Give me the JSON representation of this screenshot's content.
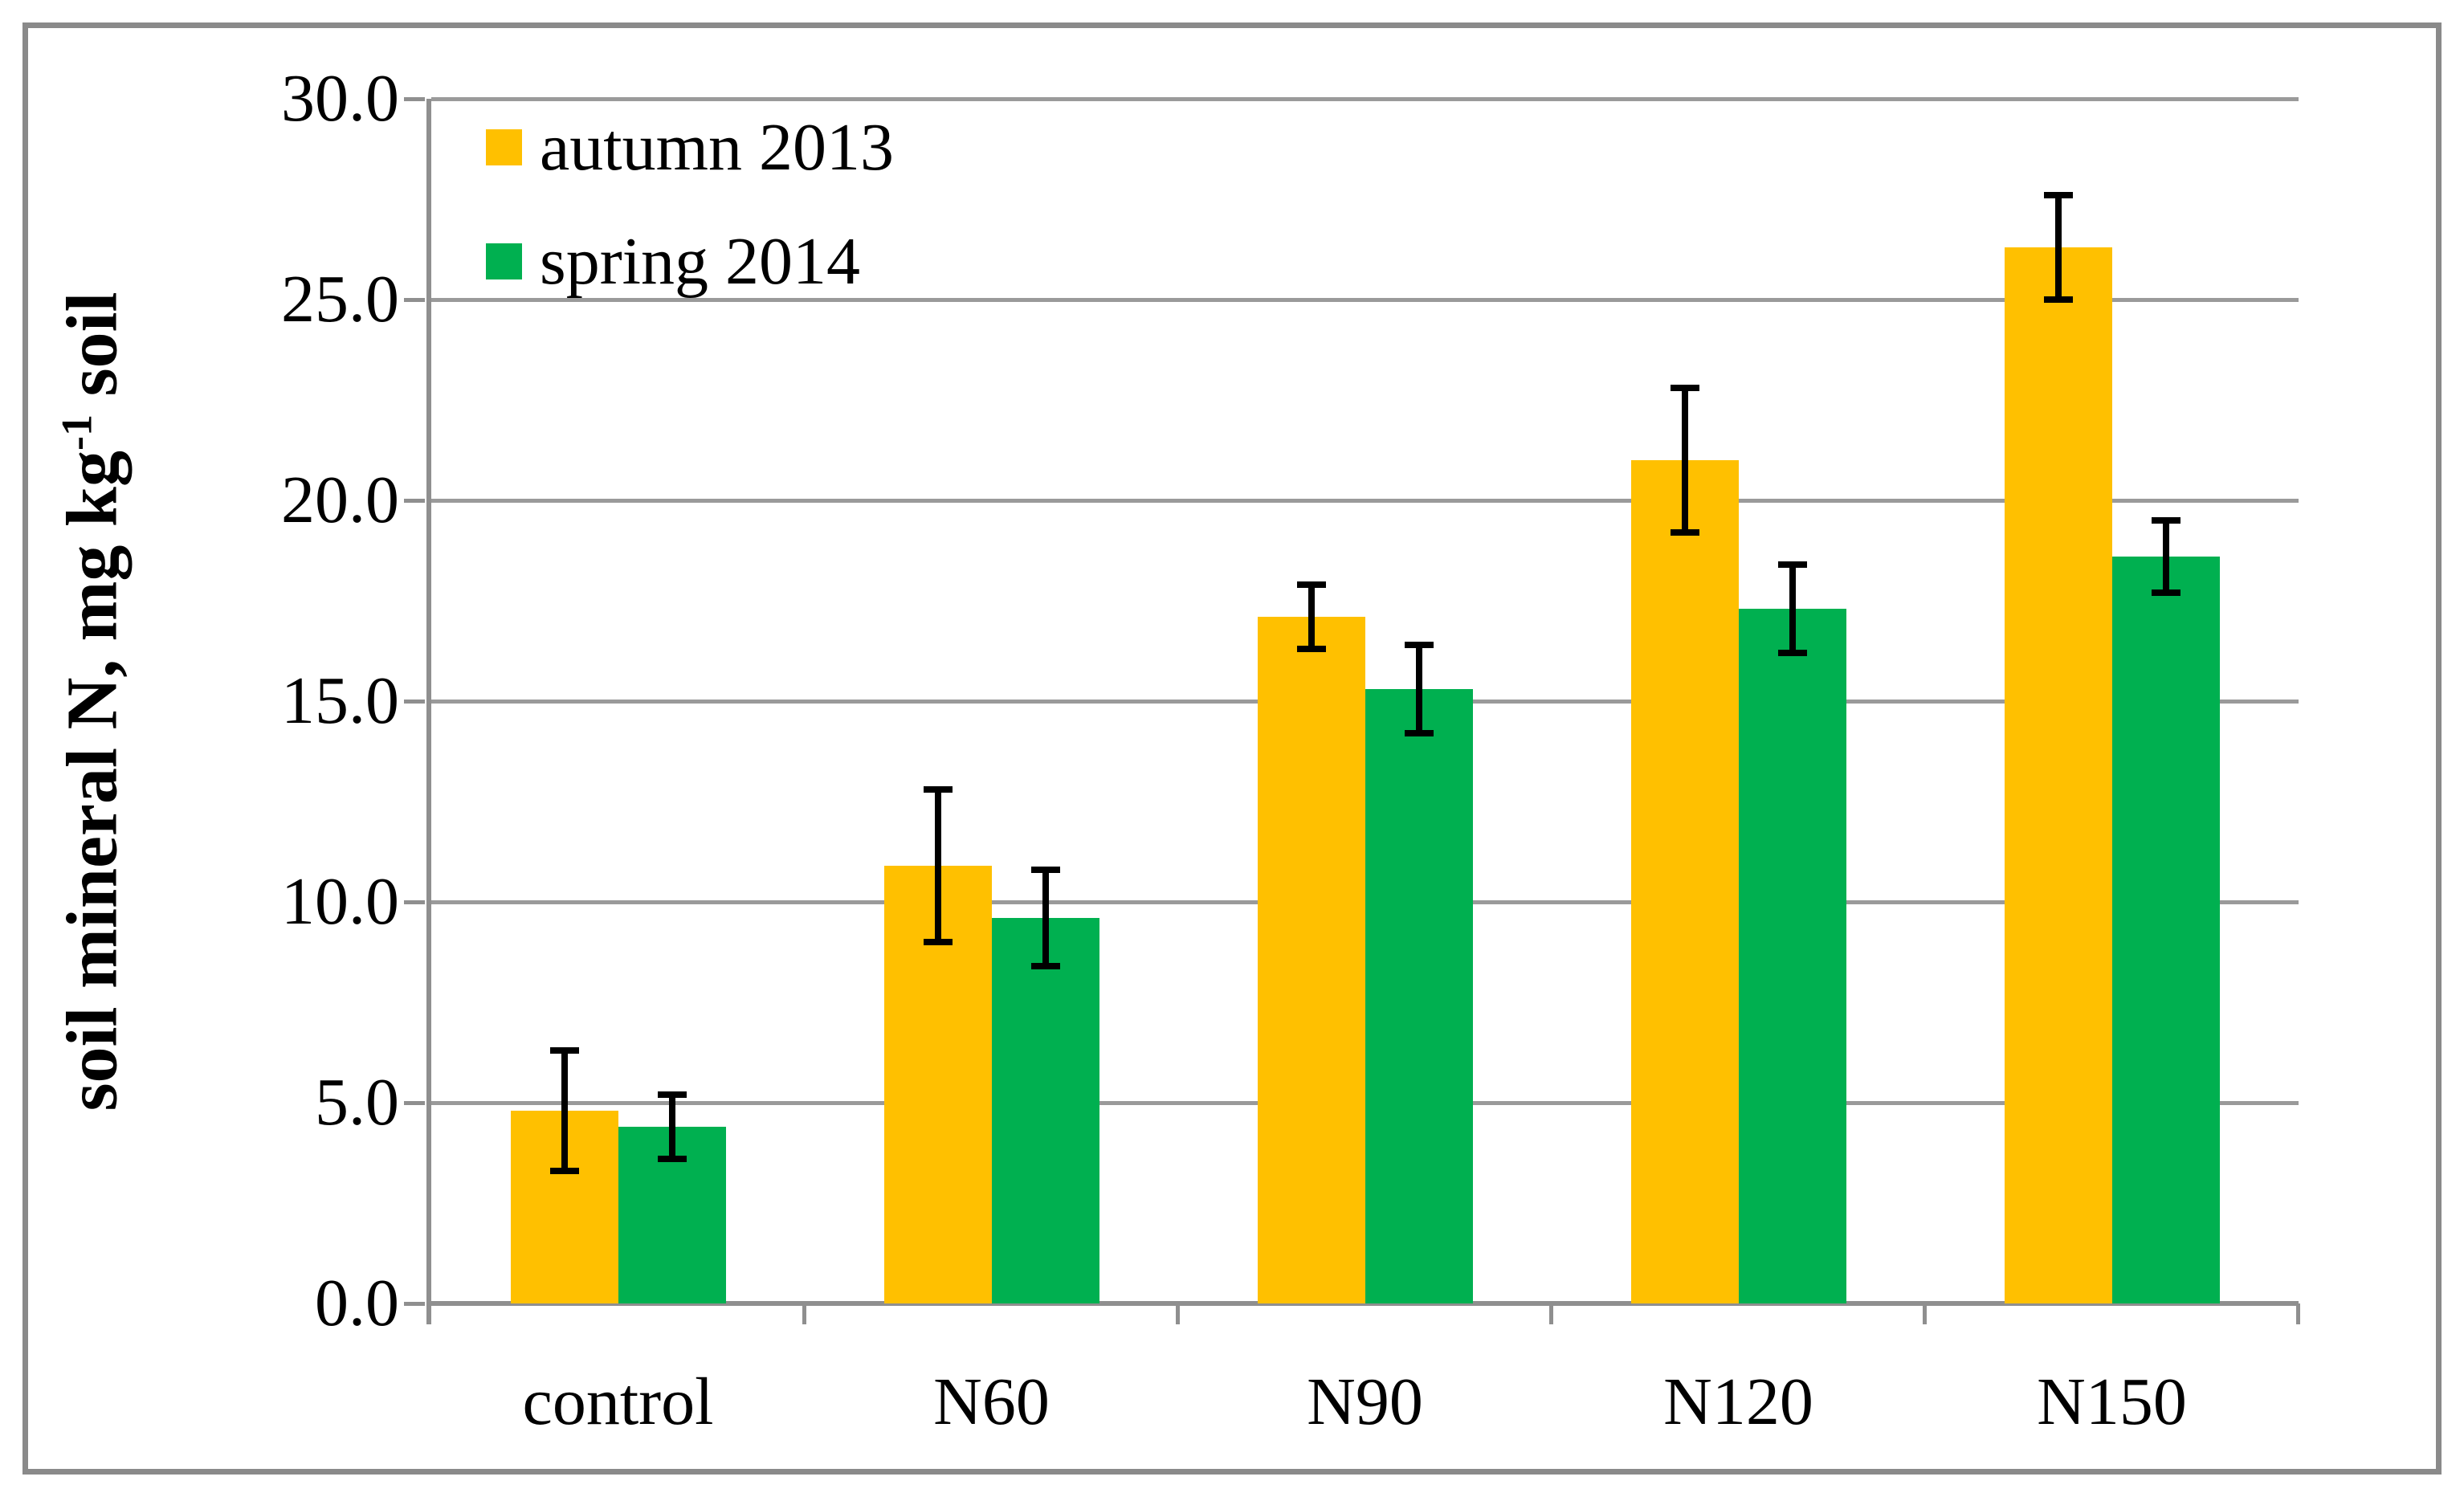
{
  "frame": {
    "background": "#ffffff",
    "border_color": "#8a8a8a"
  },
  "axes": {
    "grid_color": "#9a9a9a",
    "axis_color": "#8f8f8f",
    "text_color": "#000000",
    "error_bar_color": "#000000"
  },
  "chart_data": {
    "type": "bar",
    "title": "",
    "xlabel": "",
    "ylabel": "soil mineral N, mg kg-1 soil",
    "ylabel_parts": {
      "pre": "soil mineral N, mg kg",
      "sup": "-1",
      "post": " soil"
    },
    "categories": [
      "control",
      "N60",
      "N90",
      "N120",
      "N150"
    ],
    "series": [
      {
        "name": "autumn 2013",
        "color": "#FFC000",
        "values": [
          4.8,
          10.9,
          17.1,
          21.0,
          26.3
        ],
        "errors": [
          1.5,
          1.9,
          0.8,
          1.8,
          1.3
        ]
      },
      {
        "name": "spring 2014",
        "color": "#00B050",
        "values": [
          4.4,
          9.6,
          15.3,
          17.3,
          18.6
        ],
        "errors": [
          0.8,
          1.2,
          1.1,
          1.1,
          0.9
        ]
      }
    ],
    "ylim": [
      0,
      30
    ],
    "yticks": [
      {
        "value": 0,
        "label": "0.0"
      },
      {
        "value": 5,
        "label": "5.0"
      },
      {
        "value": 10,
        "label": "10.0"
      },
      {
        "value": 15,
        "label": "15.0"
      },
      {
        "value": 20,
        "label": "20.0"
      },
      {
        "value": 25,
        "label": "25.0"
      },
      {
        "value": 30,
        "label": "30.0"
      }
    ],
    "grid": true,
    "error_bars": true,
    "legend_position": "top-left"
  }
}
